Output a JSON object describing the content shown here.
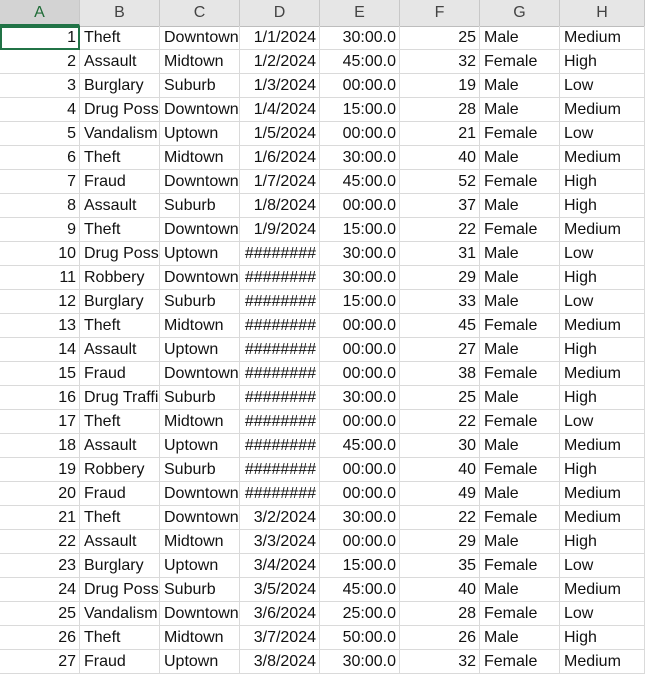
{
  "columns": [
    "A",
    "B",
    "C",
    "D",
    "E",
    "F",
    "G",
    "H"
  ],
  "rows": [
    [
      "1",
      "Theft",
      "Downtown",
      "1/1/2024",
      "30:00.0",
      "25",
      "Male",
      "Medium"
    ],
    [
      "2",
      "Assault",
      "Midtown",
      "1/2/2024",
      "45:00.0",
      "32",
      "Female",
      "High"
    ],
    [
      "3",
      "Burglary",
      "Suburb",
      "1/3/2024",
      "00:00.0",
      "19",
      "Male",
      "Low"
    ],
    [
      "4",
      "Drug Posse",
      "Downtown",
      "1/4/2024",
      "15:00.0",
      "28",
      "Male",
      "Medium"
    ],
    [
      "5",
      "Vandalism",
      "Uptown",
      "1/5/2024",
      "00:00.0",
      "21",
      "Female",
      "Low"
    ],
    [
      "6",
      "Theft",
      "Midtown",
      "1/6/2024",
      "30:00.0",
      "40",
      "Male",
      "Medium"
    ],
    [
      "7",
      "Fraud",
      "Downtown",
      "1/7/2024",
      "45:00.0",
      "52",
      "Female",
      "High"
    ],
    [
      "8",
      "Assault",
      "Suburb",
      "1/8/2024",
      "00:00.0",
      "37",
      "Male",
      "High"
    ],
    [
      "9",
      "Theft",
      "Downtown",
      "1/9/2024",
      "15:00.0",
      "22",
      "Female",
      "Medium"
    ],
    [
      "10",
      "Drug Posse",
      "Uptown",
      "########",
      "30:00.0",
      "31",
      "Male",
      "Low"
    ],
    [
      "11",
      "Robbery",
      "Downtown",
      "########",
      "30:00.0",
      "29",
      "Male",
      "High"
    ],
    [
      "12",
      "Burglary",
      "Suburb",
      "########",
      "15:00.0",
      "33",
      "Male",
      "Low"
    ],
    [
      "13",
      "Theft",
      "Midtown",
      "########",
      "00:00.0",
      "45",
      "Female",
      "Medium"
    ],
    [
      "14",
      "Assault",
      "Uptown",
      "########",
      "00:00.0",
      "27",
      "Male",
      "High"
    ],
    [
      "15",
      "Fraud",
      "Downtown",
      "########",
      "00:00.0",
      "38",
      "Female",
      "Medium"
    ],
    [
      "16",
      "Drug Traffi",
      "Suburb",
      "########",
      "30:00.0",
      "25",
      "Male",
      "High"
    ],
    [
      "17",
      "Theft",
      "Midtown",
      "########",
      "00:00.0",
      "22",
      "Female",
      "Low"
    ],
    [
      "18",
      "Assault",
      "Uptown",
      "########",
      "45:00.0",
      "30",
      "Male",
      "Medium"
    ],
    [
      "19",
      "Robbery",
      "Suburb",
      "########",
      "00:00.0",
      "40",
      "Female",
      "High"
    ],
    [
      "20",
      "Fraud",
      "Downtown",
      "########",
      "00:00.0",
      "49",
      "Male",
      "Medium"
    ],
    [
      "21",
      "Theft",
      "Downtown",
      "3/2/2024",
      "30:00.0",
      "22",
      "Female",
      "Medium"
    ],
    [
      "22",
      "Assault",
      "Midtown",
      "3/3/2024",
      "00:00.0",
      "29",
      "Male",
      "High"
    ],
    [
      "23",
      "Burglary",
      "Uptown",
      "3/4/2024",
      "15:00.0",
      "35",
      "Female",
      "Low"
    ],
    [
      "24",
      "Drug Posse",
      "Suburb",
      "3/5/2024",
      "45:00.0",
      "40",
      "Male",
      "Medium"
    ],
    [
      "25",
      "Vandalism",
      "Downtown",
      "3/6/2024",
      "25:00.0",
      "28",
      "Female",
      "Low"
    ],
    [
      "26",
      "Theft",
      "Midtown",
      "3/7/2024",
      "50:00.0",
      "26",
      "Male",
      "High"
    ],
    [
      "27",
      "Fraud",
      "Uptown",
      "3/8/2024",
      "30:00.0",
      "32",
      "Female",
      "Medium"
    ]
  ],
  "colors": {
    "accent": "#217346",
    "header_bg": "#e6e6e6",
    "gridline": "#dadada"
  }
}
